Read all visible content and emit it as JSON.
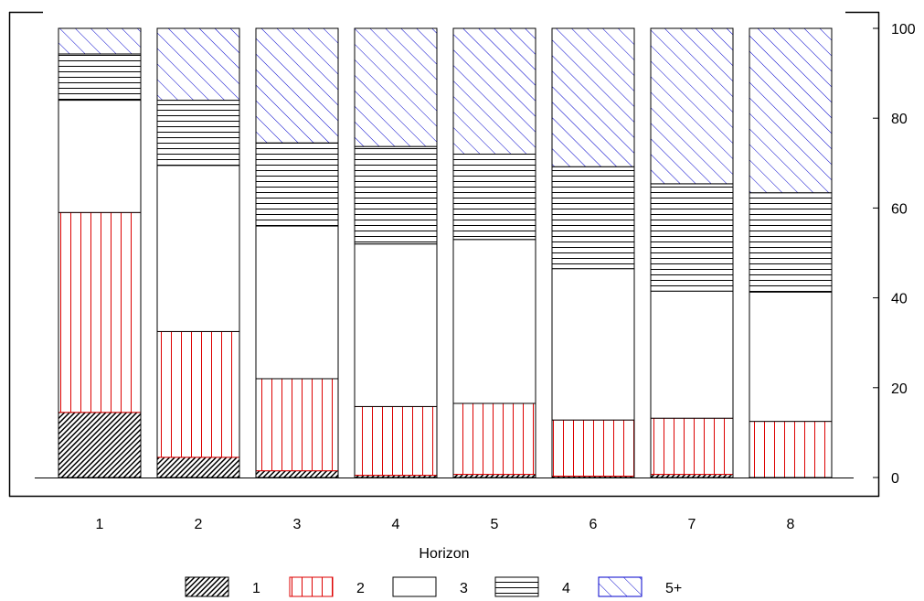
{
  "chart_data": {
    "type": "bar",
    "stacked": true,
    "categories": [
      "1",
      "2",
      "3",
      "4",
      "5",
      "6",
      "7",
      "8"
    ],
    "xlabel": "Horizon",
    "ylabel": "",
    "ylim": [
      0,
      100
    ],
    "y_ticks": [
      "0",
      "20",
      "40",
      "60",
      "80",
      "100"
    ],
    "y_axis_side": "right",
    "grid": false,
    "legend_position": "bottom",
    "series": [
      {
        "name": "1",
        "pattern": "dense-diagonal",
        "color": "#000000",
        "values": [
          14.5,
          4.5,
          1.5,
          0.5,
          0.7,
          0.3,
          0.7,
          0.0
        ]
      },
      {
        "name": "2",
        "pattern": "vertical",
        "color": "#dd0000",
        "values": [
          44.5,
          28.0,
          20.5,
          15.3,
          15.8,
          12.5,
          12.5,
          12.5
        ]
      },
      {
        "name": "3",
        "pattern": "none",
        "color": "#000000",
        "values": [
          25.0,
          37.0,
          34.0,
          36.2,
          36.5,
          33.7,
          28.3,
          28.8
        ]
      },
      {
        "name": "4",
        "pattern": "horizontal",
        "color": "#000000",
        "values": [
          10.3,
          14.5,
          18.5,
          21.7,
          19.0,
          22.7,
          23.9,
          22.1
        ]
      },
      {
        "name": "5+",
        "pattern": "diagonal",
        "color": "#0000cc",
        "values": [
          5.7,
          16.0,
          25.5,
          26.3,
          28.0,
          30.8,
          34.6,
          36.6
        ]
      }
    ]
  }
}
